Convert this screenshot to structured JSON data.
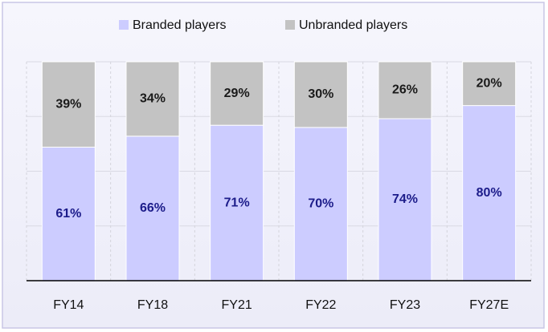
{
  "chart_data": {
    "type": "stacked_bar",
    "categories": [
      "FY14",
      "FY18",
      "FY21",
      "FY22",
      "FY23",
      "FY27E"
    ],
    "series": [
      {
        "name": "Branded players",
        "color": "#ccccff",
        "label_color": "#1c1c8a",
        "values": [
          61,
          66,
          71,
          70,
          74,
          80
        ],
        "value_labels": [
          "61%",
          "66%",
          "71%",
          "70%",
          "74%",
          "80%"
        ]
      },
      {
        "name": "Unbranded players",
        "color": "#c3c3c3",
        "label_color": "#1a1a1a",
        "values": [
          39,
          34,
          29,
          30,
          26,
          20
        ],
        "value_labels": [
          "39%",
          "34%",
          "29%",
          "30%",
          "26%",
          "20%"
        ]
      }
    ],
    "ylim": [
      0,
      100
    ],
    "yticks": [
      0,
      25,
      50,
      75,
      100
    ],
    "grid": true,
    "legend": "top"
  }
}
